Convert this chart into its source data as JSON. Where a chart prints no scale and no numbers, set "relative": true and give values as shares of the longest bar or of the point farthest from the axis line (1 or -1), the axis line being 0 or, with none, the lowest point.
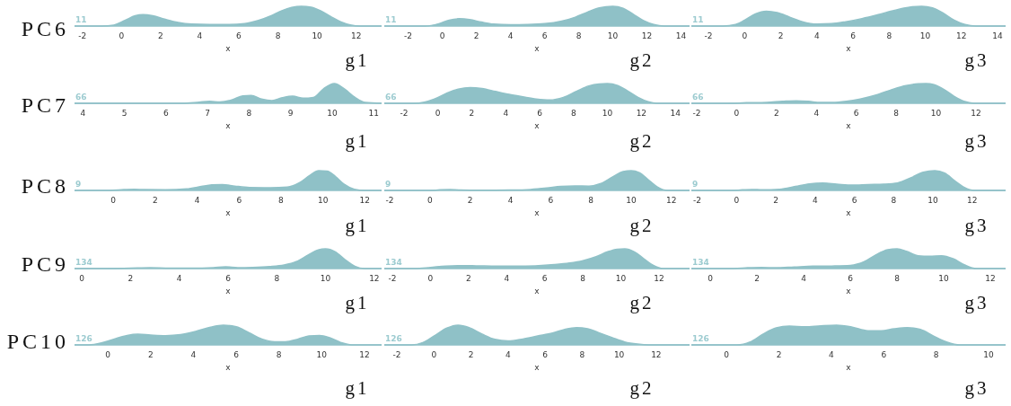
{
  "chart_data": [
    {
      "type": "area",
      "title": "g1",
      "ylabel": "PC6",
      "xlabel": "x",
      "annotations": [
        "11"
      ],
      "relative": true,
      "color": "#8fc1c7",
      "xlim": [
        -2.4,
        13.3
      ],
      "xticks": [
        -2,
        0,
        2,
        4,
        6,
        8,
        10,
        12
      ],
      "x": [
        -2.4,
        -1,
        -0.4,
        0.2,
        0.7,
        1.1,
        1.6,
        2.2,
        2.9,
        3.6,
        4.5,
        5.5,
        6.3,
        7,
        7.6,
        8.2,
        8.7,
        9.2,
        9.7,
        10.2,
        10.7,
        11.2,
        11.7,
        12.2,
        13.3
      ],
      "values": [
        0,
        0,
        0.05,
        0.3,
        0.52,
        0.58,
        0.52,
        0.35,
        0.18,
        0.1,
        0.08,
        0.08,
        0.12,
        0.28,
        0.5,
        0.78,
        0.94,
        1,
        0.95,
        0.76,
        0.48,
        0.22,
        0.06,
        0,
        0
      ]
    },
    {
      "type": "area",
      "title": "g2",
      "xlabel": "x",
      "annotations": [
        "11"
      ],
      "relative": true,
      "color": "#8fc1c7",
      "xlim": [
        -3.4,
        14.5
      ],
      "xticks": [
        -2,
        0,
        2,
        4,
        6,
        8,
        10,
        12,
        14
      ],
      "x": [
        -3.4,
        -1,
        -0.2,
        0.4,
        1,
        1.6,
        2.3,
        3,
        4,
        5,
        6,
        7,
        7.8,
        8.5,
        9.2,
        10,
        10.6,
        11.2,
        11.8,
        12.4,
        13,
        14.5
      ],
      "values": [
        0,
        0,
        0.12,
        0.3,
        0.37,
        0.33,
        0.2,
        0.1,
        0.07,
        0.08,
        0.12,
        0.25,
        0.45,
        0.7,
        0.92,
        1,
        0.9,
        0.6,
        0.28,
        0.08,
        0,
        0
      ]
    },
    {
      "type": "area",
      "title": "g3",
      "xlabel": "x",
      "annotations": [
        "11"
      ],
      "relative": true,
      "color": "#8fc1c7",
      "xlim": [
        -2.95,
        14.45
      ],
      "xticks": [
        -2,
        0,
        2,
        4,
        6,
        8,
        10,
        12,
        14
      ],
      "x": [
        -2.95,
        -1.2,
        -0.5,
        0,
        0.6,
        1.2,
        1.8,
        2.5,
        3.2,
        4,
        4.8,
        5.6,
        6.5,
        7.4,
        8.3,
        9.2,
        9.8,
        10.4,
        11,
        11.6,
        12.2,
        12.8,
        14.45
      ],
      "values": [
        0,
        0,
        0.08,
        0.3,
        0.62,
        0.75,
        0.68,
        0.45,
        0.22,
        0.1,
        0.12,
        0.22,
        0.38,
        0.58,
        0.8,
        0.97,
        1,
        0.92,
        0.65,
        0.3,
        0.08,
        0,
        0
      ]
    },
    {
      "type": "area",
      "title": "g1",
      "ylabel": "PC7",
      "xlabel": "x",
      "annotations": [
        "66"
      ],
      "relative": true,
      "color": "#8fc1c7",
      "xlim": [
        3.8,
        11.19
      ],
      "xticks": [
        4,
        5,
        6,
        7,
        8,
        9,
        10,
        11
      ],
      "x": [
        3.8,
        6.4,
        6.8,
        7.05,
        7.3,
        7.6,
        7.85,
        8.05,
        8.3,
        8.55,
        8.8,
        9.05,
        9.3,
        9.55,
        9.8,
        10.05,
        10.3,
        10.55,
        10.8,
        11.19
      ],
      "values": [
        0,
        0,
        0.06,
        0.1,
        0.07,
        0.18,
        0.38,
        0.4,
        0.22,
        0.14,
        0.28,
        0.36,
        0.26,
        0.3,
        0.75,
        1,
        0.72,
        0.3,
        0.04,
        0
      ]
    },
    {
      "type": "area",
      "title": "g2",
      "xlabel": "x",
      "annotations": [
        "66"
      ],
      "relative": true,
      "color": "#8fc1c7",
      "xlim": [
        -3.16,
        14.84
      ],
      "xticks": [
        -2,
        0,
        2,
        4,
        6,
        8,
        10,
        12,
        14
      ],
      "x": [
        -3.16,
        -1.4,
        -0.8,
        -0.2,
        0.5,
        1.2,
        1.9,
        2.6,
        3.4,
        4.2,
        5,
        5.8,
        6.6,
        7.4,
        8.2,
        8.9,
        9.5,
        10,
        10.6,
        11.2,
        11.8,
        12.4,
        12.9,
        14.84
      ],
      "values": [
        0,
        0,
        0.06,
        0.22,
        0.5,
        0.72,
        0.8,
        0.75,
        0.6,
        0.45,
        0.33,
        0.22,
        0.17,
        0.3,
        0.62,
        0.88,
        0.98,
        1,
        0.9,
        0.62,
        0.3,
        0.08,
        0,
        0
      ]
    },
    {
      "type": "area",
      "title": "g3",
      "xlabel": "x",
      "annotations": [
        "66"
      ],
      "relative": true,
      "color": "#8fc1c7",
      "xlim": [
        -2.27,
        13.49
      ],
      "xticks": [
        -2,
        0,
        2,
        4,
        6,
        8,
        10,
        12
      ],
      "x": [
        -2.27,
        -0.5,
        0.5,
        1.5,
        2.3,
        3,
        3.6,
        4.2,
        4.8,
        5.5,
        6.2,
        7,
        7.8,
        8.5,
        9.1,
        9.5,
        9.9,
        10.4,
        10.9,
        11.4,
        11.9,
        13.49
      ],
      "values": [
        0,
        0,
        0.03,
        0.05,
        0.1,
        0.13,
        0.1,
        0.04,
        0.04,
        0.1,
        0.22,
        0.42,
        0.7,
        0.9,
        0.99,
        1,
        0.94,
        0.7,
        0.36,
        0.1,
        0,
        0
      ]
    },
    {
      "type": "area",
      "title": "g1",
      "ylabel": "PC8",
      "xlabel": "x",
      "annotations": [
        "9"
      ],
      "relative": true,
      "color": "#8fc1c7",
      "xlim": [
        -1.85,
        12.8
      ],
      "xticks": [
        0,
        2,
        4,
        6,
        8,
        10,
        12
      ],
      "x": [
        -1.85,
        -0.2,
        0.5,
        1,
        1.5,
        2.5,
        3.5,
        4.2,
        4.7,
        5.2,
        5.8,
        6.5,
        7.5,
        8.3,
        8.9,
        9.4,
        9.8,
        10.2,
        10.6,
        11,
        11.5,
        12,
        12.8
      ],
      "values": [
        0,
        0,
        0.04,
        0.06,
        0.04,
        0.03,
        0.08,
        0.2,
        0.28,
        0.3,
        0.22,
        0.15,
        0.14,
        0.17,
        0.4,
        0.78,
        1,
        0.98,
        0.7,
        0.32,
        0.06,
        0,
        0
      ]
    },
    {
      "type": "area",
      "title": "g2",
      "xlabel": "x",
      "annotations": [
        "9"
      ],
      "relative": true,
      "color": "#8fc1c7",
      "xlim": [
        -2.27,
        12.9
      ],
      "xticks": [
        -2,
        0,
        2,
        4,
        6,
        8,
        10,
        12
      ],
      "x": [
        -2.27,
        0,
        0.5,
        1,
        1.5,
        2.5,
        4,
        5,
        5.8,
        6.5,
        7.2,
        7.9,
        8.5,
        9.1,
        9.6,
        10,
        10.4,
        10.9,
        11.3,
        11.8,
        12.9
      ],
      "values": [
        0,
        0,
        0.03,
        0.04,
        0.02,
        0.01,
        0.02,
        0.05,
        0.12,
        0.2,
        0.23,
        0.22,
        0.35,
        0.7,
        0.95,
        1,
        0.9,
        0.5,
        0.18,
        0,
        0
      ]
    },
    {
      "type": "area",
      "title": "g3",
      "xlabel": "x",
      "annotations": [
        "9"
      ],
      "relative": true,
      "color": "#8fc1c7",
      "xlim": [
        -2.3,
        13.7
      ],
      "xticks": [
        -2,
        0,
        2,
        4,
        6,
        8,
        10,
        12
      ],
      "x": [
        -2.3,
        -0.3,
        0.3,
        0.8,
        1.3,
        2.2,
        3,
        3.7,
        4.4,
        5.1,
        5.9,
        6.7,
        7.5,
        8.2,
        8.9,
        9.5,
        10.1,
        10.6,
        11.1,
        11.6,
        12.1,
        13.7
      ],
      "values": [
        0,
        0,
        0.03,
        0.05,
        0.03,
        0.06,
        0.2,
        0.33,
        0.37,
        0.32,
        0.27,
        0.3,
        0.32,
        0.38,
        0.65,
        0.92,
        1,
        0.88,
        0.5,
        0.15,
        0,
        0
      ]
    },
    {
      "type": "area",
      "title": "g1",
      "ylabel": "PC9",
      "xlabel": "x",
      "annotations": [
        "134"
      ],
      "relative": true,
      "color": "#8fc1c7",
      "xlim": [
        -0.3,
        12.3
      ],
      "xticks": [
        0,
        2,
        4,
        6,
        8,
        10,
        12
      ],
      "x": [
        -0.3,
        1,
        2,
        2.8,
        3.6,
        4.5,
        5.4,
        5.9,
        6.4,
        7,
        7.7,
        8.3,
        8.8,
        9.3,
        9.7,
        10,
        10.4,
        10.8,
        11.2,
        11.6,
        12.3
      ],
      "values": [
        0,
        0,
        0.02,
        0.04,
        0.02,
        0.02,
        0.05,
        0.09,
        0.05,
        0.06,
        0.1,
        0.18,
        0.35,
        0.7,
        0.95,
        1,
        0.85,
        0.45,
        0.12,
        0,
        0
      ]
    },
    {
      "type": "area",
      "title": "g2",
      "xlabel": "x",
      "annotations": [
        "134"
      ],
      "relative": true,
      "color": "#8fc1c7",
      "xlim": [
        -2.42,
        13.6
      ],
      "xticks": [
        -2,
        0,
        2,
        4,
        6,
        8,
        10,
        12
      ],
      "x": [
        -2.42,
        -0.8,
        0,
        0.8,
        1.6,
        2.4,
        3.5,
        4.5,
        5.5,
        6.5,
        7.3,
        8,
        8.7,
        9.3,
        9.8,
        10.2,
        10.7,
        11.2,
        11.7,
        12.2,
        13.6
      ],
      "values": [
        0,
        0,
        0.06,
        0.13,
        0.15,
        0.14,
        0.12,
        0.12,
        0.14,
        0.2,
        0.28,
        0.4,
        0.6,
        0.85,
        0.98,
        1,
        0.85,
        0.5,
        0.16,
        0,
        0
      ]
    },
    {
      "type": "area",
      "title": "g3",
      "xlabel": "x",
      "annotations": [
        "134"
      ],
      "relative": true,
      "color": "#8fc1c7",
      "xlim": [
        -0.81,
        12.65
      ],
      "xticks": [
        0,
        2,
        4,
        6,
        8,
        10,
        12
      ],
      "x": [
        -0.81,
        1,
        1.6,
        2.2,
        2.8,
        3.6,
        4.4,
        5.2,
        6,
        6.6,
        7.1,
        7.6,
        8,
        8.4,
        8.9,
        9.4,
        9.9,
        10.4,
        10.9,
        11.4,
        12.65
      ],
      "values": [
        0,
        0,
        0.04,
        0.06,
        0.04,
        0.08,
        0.12,
        0.13,
        0.16,
        0.35,
        0.7,
        0.95,
        1,
        0.88,
        0.65,
        0.62,
        0.65,
        0.5,
        0.18,
        0,
        0
      ]
    },
    {
      "type": "area",
      "title": "g1",
      "ylabel": "PC10",
      "xlabel": "x",
      "annotations": [
        "126"
      ],
      "relative": true,
      "color": "#8fc1c7",
      "xlim": [
        -1.56,
        12.8
      ],
      "xticks": [
        0,
        2,
        4,
        6,
        8,
        10,
        12
      ],
      "x": [
        -1.56,
        -0.9,
        -0.3,
        0.3,
        0.9,
        1.4,
        2,
        2.7,
        3.4,
        4.1,
        4.8,
        5.4,
        6,
        6.6,
        7.2,
        7.8,
        8.3,
        8.9,
        9.4,
        9.9,
        10.4,
        10.9,
        11.4,
        12.8
      ],
      "values": [
        0,
        0,
        0.1,
        0.3,
        0.48,
        0.54,
        0.5,
        0.47,
        0.52,
        0.68,
        0.9,
        1,
        0.92,
        0.62,
        0.3,
        0.16,
        0.16,
        0.3,
        0.45,
        0.48,
        0.35,
        0.12,
        0,
        0
      ]
    },
    {
      "type": "area",
      "title": "g2",
      "xlabel": "x",
      "annotations": [
        "126"
      ],
      "relative": true,
      "color": "#8fc1c7",
      "xlim": [
        -2.68,
        13.8
      ],
      "xticks": [
        -2,
        0,
        2,
        4,
        6,
        8,
        10,
        12
      ],
      "x": [
        -2.68,
        -1.2,
        -0.6,
        0,
        0.7,
        1.3,
        1.9,
        2.6,
        3.3,
        4,
        4.8,
        5.6,
        6.4,
        7.1,
        7.7,
        8.3,
        8.9,
        9.6,
        10.3,
        11,
        11.6,
        13.8
      ],
      "values": [
        0,
        0,
        0.12,
        0.45,
        0.85,
        1,
        0.88,
        0.55,
        0.28,
        0.2,
        0.3,
        0.45,
        0.6,
        0.8,
        0.88,
        0.82,
        0.62,
        0.38,
        0.15,
        0.04,
        0,
        0
      ]
    },
    {
      "type": "area",
      "title": "g3",
      "xlabel": "x",
      "annotations": [
        "126"
      ],
      "relative": true,
      "color": "#8fc1c7",
      "xlim": [
        -1.34,
        10.65
      ],
      "xticks": [
        0,
        2,
        4,
        6,
        8,
        10
      ],
      "x": [
        -1.34,
        0.4,
        0.9,
        1.4,
        1.9,
        2.4,
        3,
        3.6,
        4.2,
        4.8,
        5.4,
        5.9,
        6.4,
        6.9,
        7.4,
        7.9,
        8.4,
        8.9,
        10.65
      ],
      "values": [
        0,
        0,
        0.15,
        0.55,
        0.86,
        0.95,
        0.92,
        0.97,
        1,
        0.9,
        0.72,
        0.72,
        0.82,
        0.88,
        0.78,
        0.45,
        0.15,
        0,
        0
      ]
    }
  ]
}
